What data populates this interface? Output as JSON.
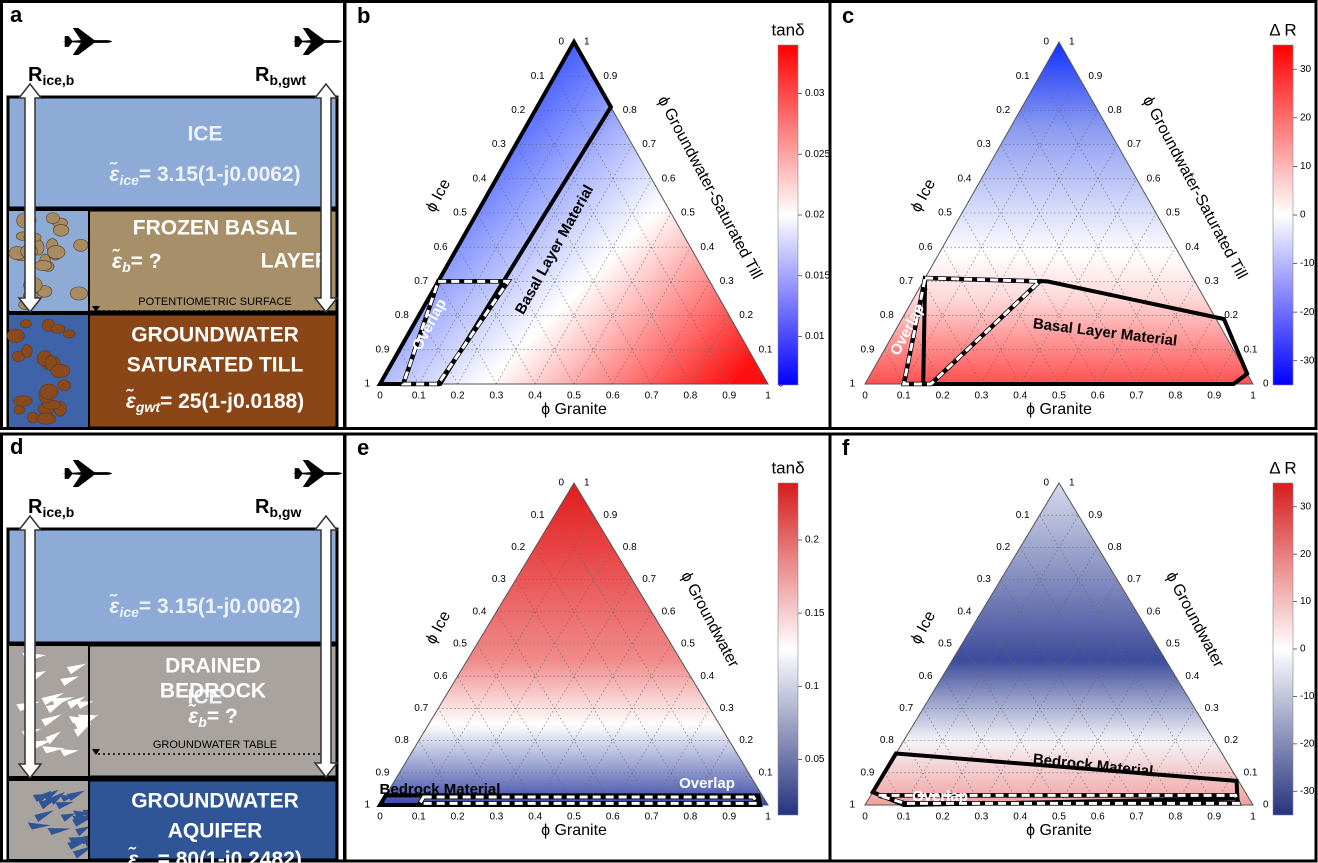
{
  "schematics": [
    {
      "letter": "a",
      "r_left": {
        "main": "R",
        "sub": "ice,b"
      },
      "r_right": {
        "main": "R",
        "sub": "b,gwt"
      },
      "top": {
        "title": [
          "ICE"
        ],
        "symbol": "ε̃",
        "sub": "ice",
        "rest": "= 3.15(1-j0.0062)"
      },
      "middle": {
        "title": [
          "FROZEN BASAL",
          "LAYER"
        ],
        "symbol": "ε̃",
        "sub": "b",
        "rest": "= ?"
      },
      "surface": "POTENTIOMETRIC SURFACE",
      "bottom": {
        "title": [
          "GROUNDWATER",
          "SATURATED TILL"
        ],
        "symbol": "ε̃",
        "sub": "gwt",
        "rest": "= 25(1-j0.0188)"
      }
    },
    {
      "letter": "d",
      "r_left": {
        "main": "R",
        "sub": "ice,b"
      },
      "r_right": {
        "main": "R",
        "sub": "b,gw"
      },
      "top": {
        "title": [
          "ICE"
        ],
        "symbol": "ε̃",
        "sub": "ice",
        "rest": "= 3.15(1-j0.0062)"
      },
      "middle": {
        "title": [
          "DRAINED",
          "BEDROCK"
        ],
        "symbol": "ε̃",
        "sub": "b",
        "rest": "= ?"
      },
      "surface": "GROUNDWATER TABLE",
      "bottom": {
        "title": [
          "GROUNDWATER",
          "AQUIFER"
        ],
        "symbol": "ε̃",
        "sub": "gw",
        "rest": "= 80(1-j0.2482)"
      }
    }
  ],
  "ternaries": [
    {
      "letter": "b",
      "colorbar_title": "tanδ",
      "clim": [
        0.006,
        0.034
      ],
      "cticks": [
        0.01,
        0.015,
        0.02,
        0.025,
        0.03
      ],
      "ticks": [
        0,
        0.1,
        0.2,
        0.3,
        0.4,
        0.5,
        0.6,
        0.7,
        0.8,
        0.9,
        1
      ],
      "axis_left": "ϕ Ice",
      "axis_right": "ϕ Groundwater-Saturated Till",
      "axis_bottom": "ϕ Granite",
      "regions": [
        {
          "label": "Basal Layer Material",
          "style": "solid",
          "vertices": [
            [
              0,
              0
            ],
            [
              0,
              1
            ],
            [
              0.19,
              0.81
            ],
            [
              0.155,
              0
            ]
          ]
        },
        {
          "label": "Overlap",
          "style": "dashed",
          "vertices": [
            [
              0,
              0.3
            ],
            [
              0.18,
              0.3
            ],
            [
              0.15,
              0
            ],
            [
              0.06,
              0
            ]
          ]
        }
      ]
    },
    {
      "letter": "c",
      "colorbar_title": "Δ R",
      "clim": [
        -35,
        35
      ],
      "cticks": [
        -30,
        -20,
        -10,
        0,
        10,
        20,
        30
      ],
      "ticks": [
        0,
        0.1,
        0.2,
        0.3,
        0.4,
        0.5,
        0.6,
        0.7,
        0.8,
        0.9,
        1
      ],
      "axis_left": "ϕ Ice",
      "axis_right": "ϕ Groundwater-Saturated Till",
      "axis_bottom": "ϕ Granite",
      "regions": [
        {
          "label": "Basal Layer Material",
          "style": "solid",
          "vertices": [
            [
              0,
              0.31
            ],
            [
              0.32,
              0.3
            ],
            [
              0.83,
              0.19
            ],
            [
              0.97,
              0.03
            ],
            [
              0.95,
              0
            ],
            [
              0.15,
              0
            ]
          ]
        },
        {
          "label": "Overlap",
          "style": "dashed",
          "vertices": [
            [
              0,
              0.31
            ],
            [
              0.3,
              0.3
            ],
            [
              0.17,
              0
            ],
            [
              0.1,
              0
            ]
          ]
        }
      ]
    },
    {
      "letter": "e",
      "colorbar_title": "tanδ",
      "clim": [
        0.012,
        0.239
      ],
      "cticks": [
        0.05,
        0.1,
        0.15,
        0.2
      ],
      "ticks": [
        0,
        0.1,
        0.2,
        0.3,
        0.4,
        0.5,
        0.6,
        0.7,
        0.8,
        0.9,
        1
      ],
      "axis_left": "ϕ Ice",
      "axis_right": "ϕ Groundwater",
      "axis_bottom": "ϕ Granite",
      "regions": [
        {
          "label": "Bedrock Material",
          "style": "solid",
          "vertices": [
            [
              0,
              0.03
            ],
            [
              0.96,
              0.03
            ],
            [
              0.98,
              0
            ],
            [
              0,
              0
            ]
          ]
        },
        {
          "label": "Overlap",
          "style": "dashed",
          "vertices": [
            [
              0.1,
              0.025
            ],
            [
              0.95,
              0.025
            ],
            [
              0.97,
              0.005
            ],
            [
              0.1,
              0.005
            ]
          ]
        }
      ]
    },
    {
      "letter": "f",
      "colorbar_title": "Δ R",
      "clim": [
        -35,
        35
      ],
      "cticks": [
        -30,
        -20,
        -10,
        0,
        10,
        20,
        30
      ],
      "ticks": [
        0,
        0.1,
        0.2,
        0.3,
        0.4,
        0.5,
        0.6,
        0.7,
        0.8,
        0.9,
        1
      ],
      "axis_left": "ϕ Ice",
      "axis_right": "ϕ Groundwater",
      "axis_bottom": "ϕ Granite",
      "regions": [
        {
          "label": "Bedrock Material",
          "style": "solid",
          "vertices": [
            [
              0,
              0.16
            ],
            [
              0.92,
              0.075
            ],
            [
              0.95,
              0.02
            ],
            [
              0.1,
              0
            ],
            [
              0,
              0.04
            ]
          ]
        },
        {
          "label": "Overlap",
          "style": "dashed",
          "vertices": [
            [
              0.02,
              0.03
            ],
            [
              0.94,
              0.03
            ],
            [
              0.96,
              0.005
            ],
            [
              0.1,
              0.005
            ]
          ]
        }
      ]
    }
  ]
}
